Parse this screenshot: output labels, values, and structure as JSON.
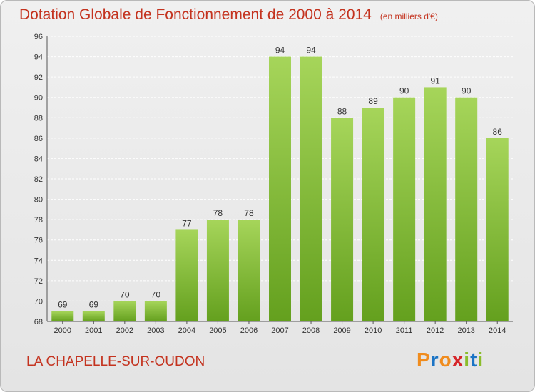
{
  "header": {
    "title": "Dotation Globale de Fonctionnement de 2000 à 2014",
    "unit": "(en milliers d'€)"
  },
  "footer": {
    "commune": "LA CHAPELLE-SUR-OUDON",
    "logo": {
      "letters": [
        "P",
        "r",
        "o",
        "x",
        "i",
        "t",
        "i"
      ],
      "colors": [
        "#f08c1e",
        "#1b74c5",
        "#f08c1e",
        "#d6262a",
        "#8bbd2b",
        "#1b74c5",
        "#8bbd2b"
      ]
    }
  },
  "colors": {
    "title": "#c4331f",
    "bar_light": "#a6d55a",
    "bar_dark": "#64a01e",
    "grid": "#ffffff",
    "axis": "#555555"
  },
  "chart_data": {
    "type": "bar",
    "title": "Dotation Globale de Fonctionnement de 2000 à 2014",
    "xlabel": "",
    "ylabel": "",
    "categories": [
      "2000",
      "2001",
      "2002",
      "2003",
      "2004",
      "2005",
      "2006",
      "2007",
      "2008",
      "2009",
      "2010",
      "2011",
      "2012",
      "2013",
      "2014"
    ],
    "values": [
      69,
      69,
      70,
      70,
      77,
      78,
      78,
      94,
      94,
      88,
      89,
      90,
      91,
      90,
      86
    ],
    "ylim": [
      68,
      96
    ],
    "yticks": [
      68,
      70,
      72,
      74,
      76,
      78,
      80,
      82,
      84,
      86,
      88,
      90,
      92,
      94,
      96
    ],
    "grid": true,
    "legend": "none"
  }
}
